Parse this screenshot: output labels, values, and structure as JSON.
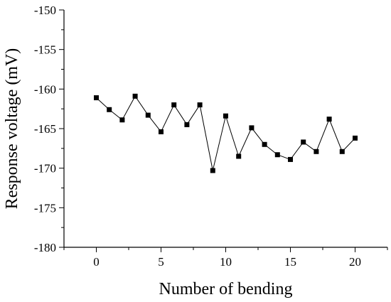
{
  "chart_data": {
    "type": "line",
    "xlabel": "Number of bending",
    "ylabel": "Response voltage (mV)",
    "xlim": [
      -2.5,
      22.5
    ],
    "ylim": [
      -180,
      -150
    ],
    "x_ticks": [
      0,
      5,
      10,
      15,
      20
    ],
    "y_ticks": [
      -180,
      -175,
      -170,
      -165,
      -160,
      -155,
      -150
    ],
    "grid": false,
    "marker": "square",
    "line_color": "#000000",
    "series": [
      {
        "x": [
          0,
          1,
          2,
          3,
          4,
          5,
          6,
          7,
          8,
          9,
          10,
          11,
          12,
          13,
          14,
          15,
          16,
          17,
          18,
          19,
          20
        ],
        "values": [
          -161.1,
          -162.6,
          -163.9,
          -160.9,
          -163.3,
          -165.4,
          -162.0,
          -164.5,
          -162.0,
          -170.3,
          -163.4,
          -168.5,
          -164.9,
          -167.0,
          -168.3,
          -168.9,
          -166.7,
          -167.9,
          -163.8,
          -167.9,
          -166.2
        ]
      }
    ]
  }
}
